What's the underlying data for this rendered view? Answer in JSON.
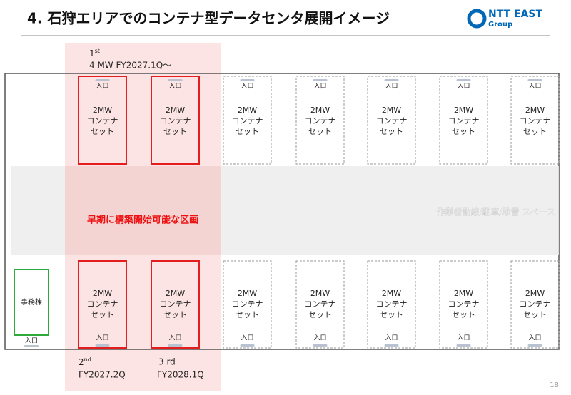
{
  "header": {
    "title": "4. 石狩エリアでのコンテナ型データセンタ展開イメージ",
    "logo": {
      "name": "NTT EAST",
      "sub": "Group"
    }
  },
  "phases": [
    {
      "ordinal": "1",
      "suffix": "st",
      "detail": "4 MW FY2027.1Q～"
    },
    {
      "ordinal": "2",
      "suffix": "nd",
      "detail": "FY2027.2Q"
    },
    {
      "ordinal": "3 rd",
      "detail": "FY2028.1Q"
    }
  ],
  "top_row": [
    {
      "entrance": "入口",
      "lines": [
        "2MW",
        "コンテナ",
        "セット"
      ],
      "highlighted": true
    },
    {
      "entrance": "入口",
      "lines": [
        "2MW",
        "コンテナ",
        "セット"
      ],
      "highlighted": true
    },
    {
      "entrance": "入口",
      "lines": [
        "2MW",
        "コンテナ",
        "セット"
      ],
      "highlighted": false
    },
    {
      "entrance": "入口",
      "lines": [
        "2MW",
        "コンテナ",
        "セット"
      ],
      "highlighted": false
    },
    {
      "entrance": "入口",
      "lines": [
        "2MW",
        "コンテナ",
        "セット"
      ],
      "highlighted": false
    },
    {
      "entrance": "入口",
      "lines": [
        "2MW",
        "コンテナ",
        "セット"
      ],
      "highlighted": false
    },
    {
      "entrance": "入口",
      "lines": [
        "2MW",
        "コンテナ",
        "セット"
      ],
      "highlighted": false
    }
  ],
  "bottom_row": [
    {
      "entrance": "入口",
      "lines": [
        "2MW",
        "コンテナ",
        "セット"
      ],
      "highlighted": true
    },
    {
      "entrance": "入口",
      "lines": [
        "2MW",
        "コンテナ",
        "セット"
      ],
      "highlighted": true
    },
    {
      "entrance": "入口",
      "lines": [
        "2MW",
        "コンテナ",
        "セット"
      ],
      "highlighted": false
    },
    {
      "entrance": "入口",
      "lines": [
        "2MW",
        "コンテナ",
        "セット"
      ],
      "highlighted": false
    },
    {
      "entrance": "入口",
      "lines": [
        "2MW",
        "コンテナ",
        "セット"
      ],
      "highlighted": false
    },
    {
      "entrance": "入口",
      "lines": [
        "2MW",
        "コンテナ",
        "セット"
      ],
      "highlighted": false
    },
    {
      "entrance": "入口",
      "lines": [
        "2MW",
        "コンテナ",
        "セット"
      ],
      "highlighted": false
    }
  ],
  "office": {
    "label": "事務棟",
    "entrance": "入口"
  },
  "middle": {
    "early_zone": "早期に構築開始可能な区画",
    "space": "作業者動線/駐車/堆雪 スペース"
  },
  "page_number": "18"
}
